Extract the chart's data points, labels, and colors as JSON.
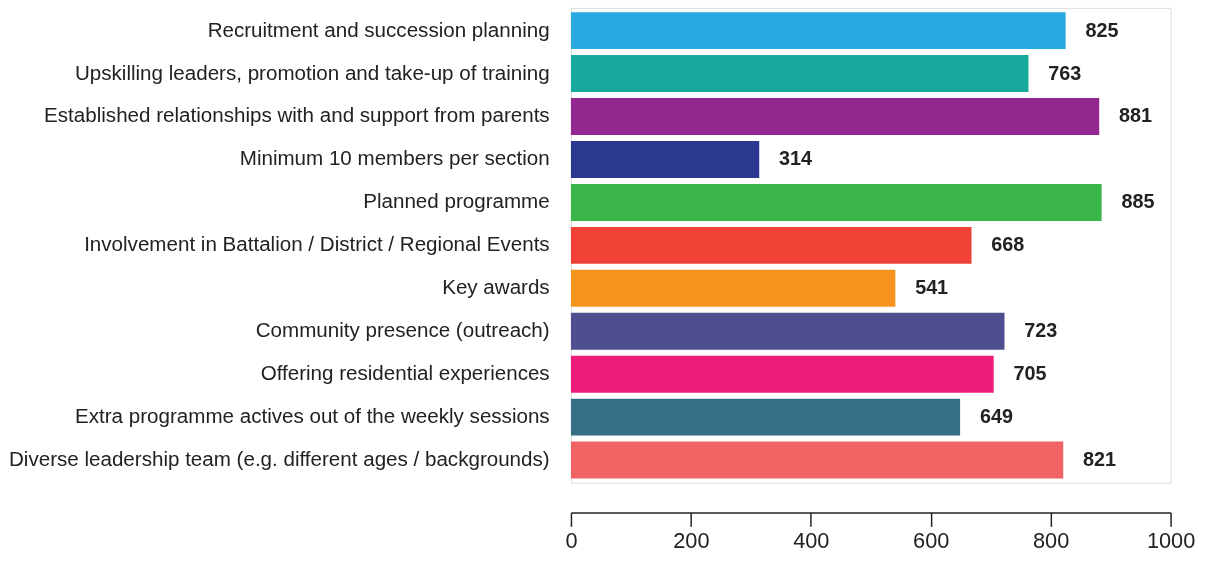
{
  "chart_data": {
    "type": "bar",
    "orientation": "horizontal",
    "categories": [
      "Recruitment and succession planning",
      "Upskilling leaders, promotion and take-up of training",
      "Established relationships with and support from parents",
      "Minimum 10 members per section",
      "Planned programme",
      "Involvement in Battalion / District / Regional Events",
      "Key awards",
      "Community presence (outreach)",
      "Offering residential experiences",
      "Extra programme actives out of the weekly sessions",
      "Diverse leadership team (e.g. different ages / backgrounds)"
    ],
    "values": [
      825,
      763,
      881,
      314,
      885,
      668,
      541,
      723,
      705,
      649,
      821
    ],
    "colors": [
      "#29abe2",
      "#17a89e",
      "#92278f",
      "#2b3990",
      "#39b54a",
      "#ef4136",
      "#f7941d",
      "#4f4f8f",
      "#ed1e79",
      "#366e86",
      "#f26363"
    ],
    "xlim": [
      0,
      1000
    ],
    "xticks": [
      0,
      200,
      400,
      600,
      800,
      1000
    ],
    "data_labels": true,
    "grid": false
  }
}
